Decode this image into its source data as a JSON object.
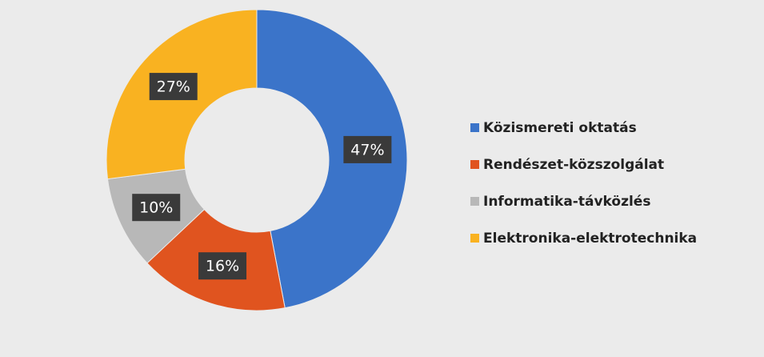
{
  "chart_data": {
    "type": "pie",
    "categories": [
      "Közismereti oktatás",
      "Rendészet-közszolgálat",
      "Informatika-távközlés",
      "Elektronika-elektrotechnika"
    ],
    "values": [
      47,
      16,
      10,
      27
    ],
    "value_labels": [
      "47%",
      "16%",
      "10%",
      "27%"
    ],
    "colors": [
      "#3b74c9",
      "#e0541f",
      "#b8b8b8",
      "#f9b221"
    ],
    "donut": true,
    "legend": "right"
  }
}
